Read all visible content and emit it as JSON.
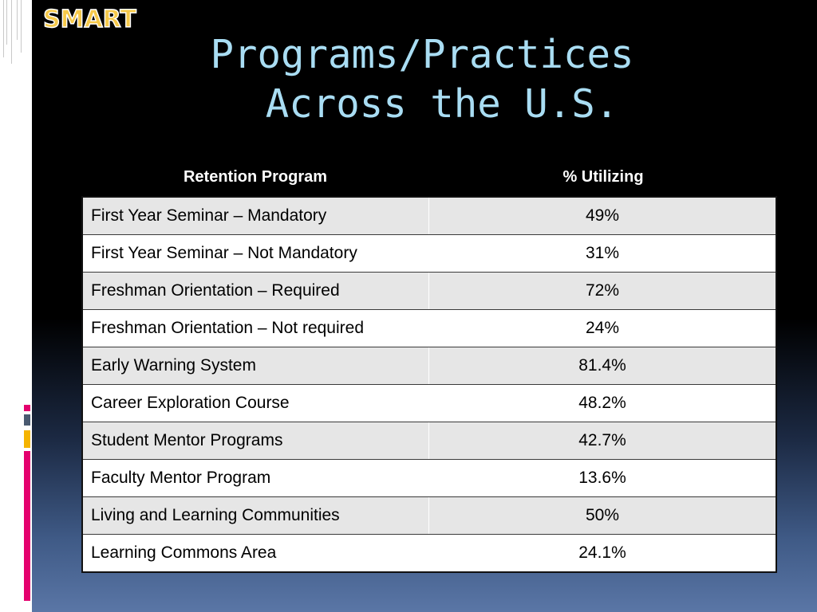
{
  "logo": {
    "text": "SMART"
  },
  "title": {
    "line1": "Programs/Practices",
    "line2": "Across the U.S."
  },
  "table": {
    "headers": [
      "Retention Program",
      "% Utilizing"
    ],
    "rows": [
      {
        "program": "First Year Seminar – Mandatory",
        "percent": "49%"
      },
      {
        "program": "First Year Seminar – Not Mandatory",
        "percent": "31%"
      },
      {
        "program": "Freshman Orientation – Required",
        "percent": "72%"
      },
      {
        "program": "Freshman Orientation – Not required",
        "percent": "24%"
      },
      {
        "program": "Early Warning System",
        "percent": "81.4%"
      },
      {
        "program": "Career Exploration Course",
        "percent": "48.2%"
      },
      {
        "program": "Student Mentor Programs",
        "percent": "42.7%"
      },
      {
        "program": "Faculty Mentor Program",
        "percent": "13.6%"
      },
      {
        "program": "Living and Learning Communities",
        "percent": "50%"
      },
      {
        "program": "Learning Commons Area",
        "percent": "24.1%"
      }
    ]
  },
  "colors": {
    "title": "#a9ddf3",
    "logo": "#f6c94a",
    "accent_pink": "#e4006e",
    "accent_gray": "#4a5a70",
    "accent_yellow": "#f5b400",
    "row_shade": "#e6e6e6"
  }
}
